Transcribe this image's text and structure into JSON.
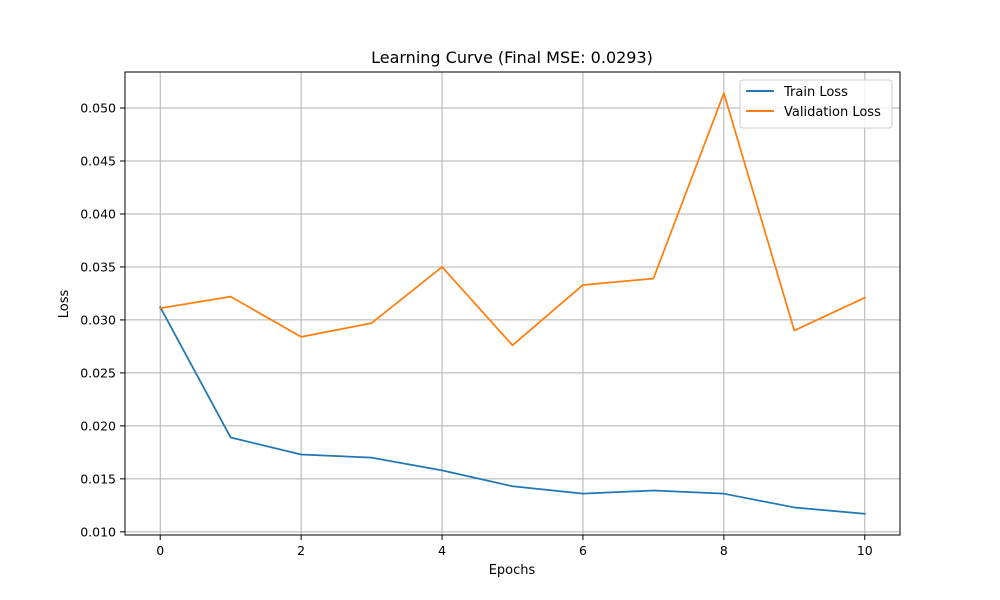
{
  "chart_data": {
    "type": "line",
    "title": "Learning Curve (Final MSE: 0.0293)",
    "xlabel": "Epochs",
    "ylabel": "Loss",
    "x": [
      0,
      1,
      2,
      3,
      4,
      5,
      6,
      7,
      8,
      9,
      10
    ],
    "xlim": [
      -0.5,
      10.5
    ],
    "ylim": [
      0.0097,
      0.0534
    ],
    "xticks": [
      0,
      2,
      4,
      6,
      8,
      10
    ],
    "xtick_labels": [
      "0",
      "2",
      "4",
      "6",
      "8",
      "10"
    ],
    "yticks": [
      0.01,
      0.015,
      0.02,
      0.025,
      0.03,
      0.035,
      0.04,
      0.045,
      0.05
    ],
    "ytick_labels": [
      "0.010",
      "0.015",
      "0.020",
      "0.025",
      "0.030",
      "0.035",
      "0.040",
      "0.045",
      "0.050"
    ],
    "grid": true,
    "legend_position": "top-right",
    "series": [
      {
        "name": "Train Loss",
        "color": "#1f77b4",
        "values": [
          0.0312,
          0.0189,
          0.0173,
          0.017,
          0.0158,
          0.0143,
          0.0136,
          0.0139,
          0.0136,
          0.0123,
          0.0117
        ]
      },
      {
        "name": "Validation Loss",
        "color": "#ff7f0e",
        "values": [
          0.0311,
          0.0322,
          0.0284,
          0.0297,
          0.035,
          0.0276,
          0.0333,
          0.0339,
          0.0514,
          0.029,
          0.0321
        ]
      }
    ]
  }
}
